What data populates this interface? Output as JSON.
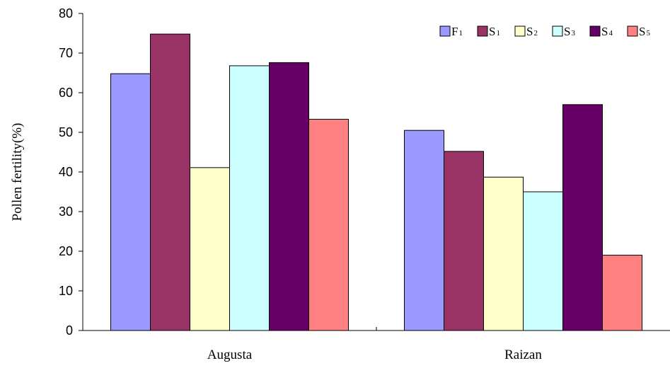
{
  "chart_data": {
    "type": "bar",
    "title": "",
    "xlabel": "",
    "ylabel": "Pollen fertility(%)",
    "ylim": [
      0,
      80
    ],
    "yticks": [
      0,
      10,
      20,
      30,
      40,
      50,
      60,
      70,
      80
    ],
    "grid": false,
    "legend_position": "top-right",
    "categories": [
      "Augusta",
      "Raizan"
    ],
    "series": [
      {
        "name": "F",
        "sub": "1",
        "color": "#9999FF",
        "values": [
          64.8,
          50.5
        ]
      },
      {
        "name": "S",
        "sub": "1",
        "color": "#993366",
        "values": [
          74.8,
          45.2
        ]
      },
      {
        "name": "S",
        "sub": "2",
        "color": "#FFFFCC",
        "values": [
          41.1,
          38.7
        ]
      },
      {
        "name": "S",
        "sub": "3",
        "color": "#CCFFFF",
        "values": [
          66.8,
          35.0
        ]
      },
      {
        "name": "S",
        "sub": "4",
        "color": "#660066",
        "values": [
          67.6,
          57.0
        ]
      },
      {
        "name": "S",
        "sub": "5",
        "color": "#FF8080",
        "values": [
          53.3,
          19.0
        ]
      }
    ]
  }
}
